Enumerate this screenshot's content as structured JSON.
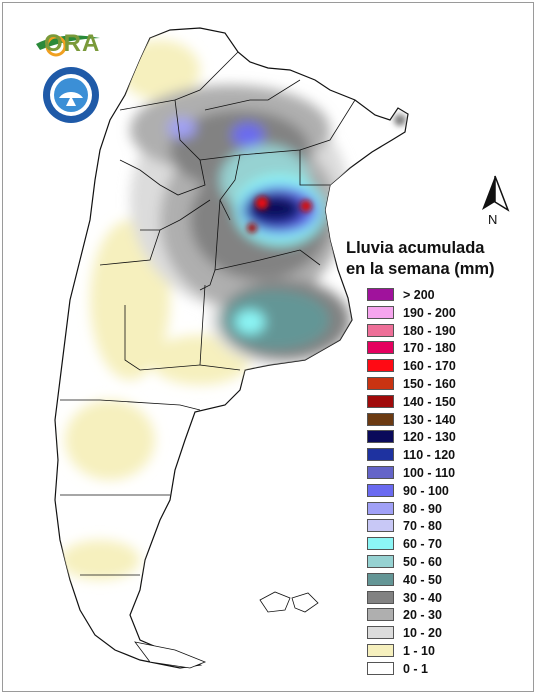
{
  "logo_text": "ORA",
  "seal_icon": "smn-argentina-seal-icon",
  "north_label": "N",
  "legend": {
    "title_line1": "Lluvia acumulada",
    "title_line2": "en la semana (mm)",
    "items": [
      {
        "label": "> 200",
        "color": "#a0129c"
      },
      {
        "label": "190 - 200",
        "color": "#f6a5ee"
      },
      {
        "label": "180 - 190",
        "color": "#ee6f98"
      },
      {
        "label": "170 - 180",
        "color": "#e5005f"
      },
      {
        "label": "160 - 170",
        "color": "#ff0a14"
      },
      {
        "label": "150 - 160",
        "color": "#c93312"
      },
      {
        "label": "140 - 150",
        "color": "#a00a0a"
      },
      {
        "label": "130 - 140",
        "color": "#6b3a12"
      },
      {
        "label": "120 - 130",
        "color": "#0a0a5a"
      },
      {
        "label": "110 - 120",
        "color": "#1e32a0"
      },
      {
        "label": "100 - 110",
        "color": "#6464c8"
      },
      {
        "label": "90 - 100",
        "color": "#6a6af0"
      },
      {
        "label": "80 - 90",
        "color": "#a0a0f6"
      },
      {
        "label": "70 - 80",
        "color": "#c8c8f6"
      },
      {
        "label": "60 - 70",
        "color": "#8cf6f6"
      },
      {
        "label": "50 - 60",
        "color": "#96d2d2"
      },
      {
        "label": "40 - 50",
        "color": "#649696"
      },
      {
        "label": "30 - 40",
        "color": "#828282"
      },
      {
        "label": "20 - 30",
        "color": "#afafaf"
      },
      {
        "label": "10 - 20",
        "color": "#dcdcdc"
      },
      {
        "label": "1 - 10",
        "color": "#f6f0be"
      },
      {
        "label": "0 - 1",
        "color": "#ffffff"
      }
    ]
  }
}
